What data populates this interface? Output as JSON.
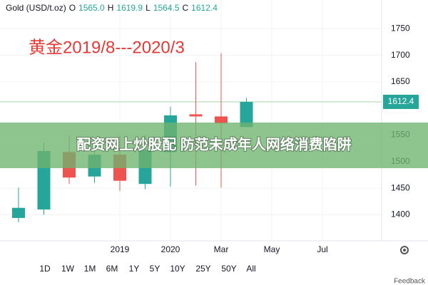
{
  "header": {
    "symbol": "Gold (USD/t.oz)",
    "ohlc": [
      "O",
      "1565.0",
      "H",
      "1619.9",
      "L",
      "1564.5",
      "C",
      "1612.4"
    ]
  },
  "chart_data": {
    "type": "candlestick",
    "title": "黄金2019/8---2020/3",
    "categories": [
      null,
      null,
      null,
      null,
      "2019",
      null,
      "2020",
      null,
      "Mar",
      null,
      "May",
      null,
      "Jul",
      null
    ],
    "open": [
      1394,
      1410,
      1518,
      1472,
      1513,
      1458,
      1518,
      1589,
      1585,
      1565,
      null,
      null,
      null,
      null
    ],
    "high": [
      1451,
      1536,
      1549,
      1529,
      1549,
      1550,
      1603,
      1687,
      1704,
      1619.9,
      null,
      null,
      null,
      null
    ],
    "low": [
      1386,
      1400,
      1458,
      1460,
      1445,
      1448,
      1453,
      1455,
      1451,
      1564.5,
      null,
      null,
      null,
      null
    ],
    "close": [
      1413,
      1520,
      1470,
      1513,
      1464,
      1522,
      1587,
      1585,
      1572,
      1612.4,
      null,
      null,
      null,
      null
    ],
    "up_color": "#26a69a",
    "down_color": "#ef5350",
    "ylim": [
      1351,
      1804
    ],
    "yticks": [
      1400,
      1450,
      1500,
      1550,
      1650,
      1700,
      1750
    ],
    "grid": true,
    "last_price": 1612.4
  },
  "banner": "配资网上炒股配 防范未成年人网络消费陷阱",
  "ranges": [
    "1D",
    "1W",
    "1M",
    "6M",
    "1Y",
    "5Y",
    "10Y",
    "25Y",
    "50Y",
    "All"
  ],
  "feedback": "Feedback"
}
